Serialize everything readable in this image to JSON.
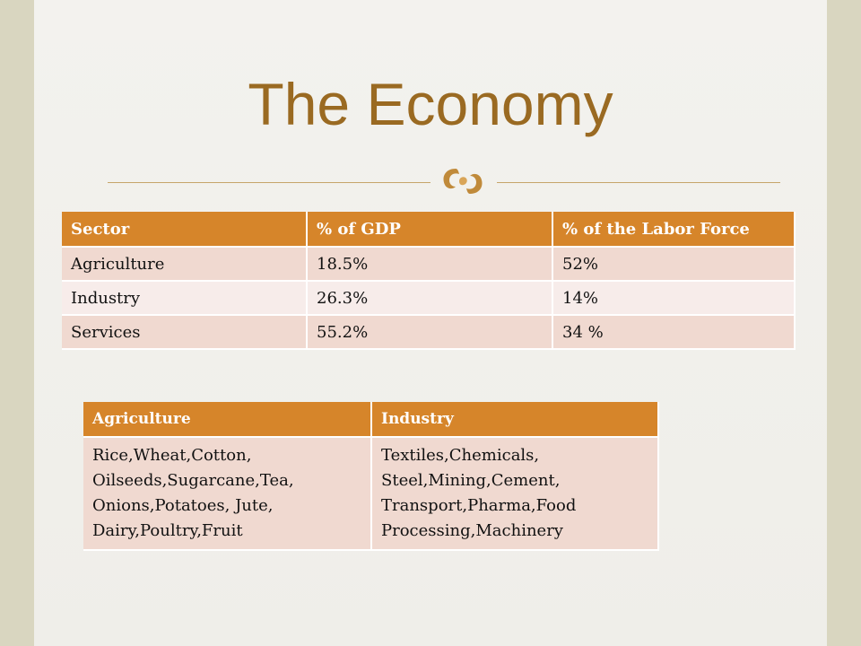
{
  "slide": {
    "title": "The Economy",
    "ornament_icon": "decorative-flourish-icon",
    "colors": {
      "title": "#9a6a22",
      "header": "#d6852a",
      "row_dark": "#f0d9d0",
      "row_light": "#f7ecea"
    }
  },
  "sector_table": {
    "headers": [
      "Sector",
      "% of GDP",
      "% of the Labor Force"
    ],
    "rows": [
      [
        "Agriculture",
        "18.5%",
        "52%"
      ],
      [
        "Industry",
        "26.3%",
        "14%"
      ],
      [
        "Services",
        "55.2%",
        "34 %"
      ]
    ]
  },
  "products_table": {
    "headers": [
      "Agriculture",
      "Industry"
    ],
    "agriculture_lines": [
      "Rice,Wheat,Cotton,",
      "Oilseeds,Sugarcane,Tea,",
      "Onions,Potatoes, Jute,",
      "Dairy,Poultry,Fruit"
    ],
    "industry_lines": [
      "Textiles,Chemicals,",
      "Steel,Mining,Cement,",
      "Transport,Pharma,Food",
      "Processing,Machinery"
    ]
  }
}
